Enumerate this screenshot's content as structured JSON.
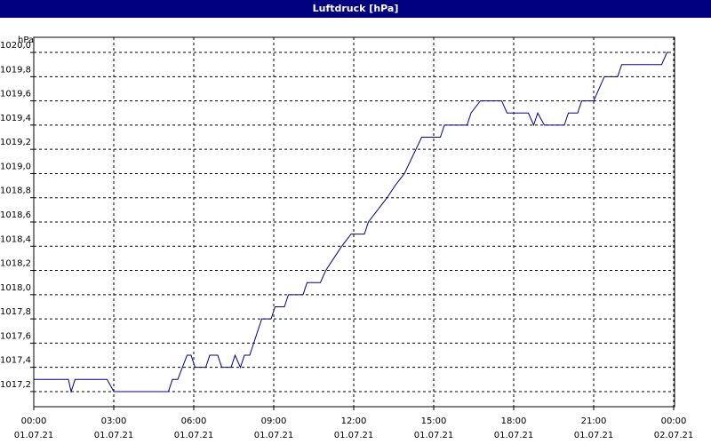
{
  "chart_data": {
    "type": "line",
    "title": "Luftdruck [hPa]",
    "y_label": "hPa",
    "xlim": [
      0,
      24
    ],
    "ylim": [
      1017.075,
      1020.125
    ],
    "xticks": [
      {
        "value": 0,
        "label": "00:00",
        "date": "01.07.21"
      },
      {
        "value": 3,
        "label": "03:00",
        "date": "01.07.21"
      },
      {
        "value": 6,
        "label": "06:00",
        "date": "01.07.21"
      },
      {
        "value": 9,
        "label": "09:00",
        "date": "01.07.21"
      },
      {
        "value": 12,
        "label": "12:00",
        "date": "01.07.21"
      },
      {
        "value": 15,
        "label": "15:00",
        "date": "01.07.21"
      },
      {
        "value": 18,
        "label": "18:00",
        "date": "01.07.21"
      },
      {
        "value": 21,
        "label": "21:00",
        "date": "01.07.21"
      },
      {
        "value": 24,
        "label": "00:00",
        "date": "02.07.21"
      }
    ],
    "yticks": [
      {
        "value": 1017.2,
        "label": "1017,2"
      },
      {
        "value": 1017.4,
        "label": "1017,4"
      },
      {
        "value": 1017.6,
        "label": "1017,6"
      },
      {
        "value": 1017.8,
        "label": "1017,8"
      },
      {
        "value": 1018.0,
        "label": "1018,0"
      },
      {
        "value": 1018.2,
        "label": "1018,2"
      },
      {
        "value": 1018.4,
        "label": "1018,4"
      },
      {
        "value": 1018.6,
        "label": "1018,6"
      },
      {
        "value": 1018.8,
        "label": "1018,8"
      },
      {
        "value": 1019.0,
        "label": "1019,0"
      },
      {
        "value": 1019.2,
        "label": "1019,2"
      },
      {
        "value": 1019.4,
        "label": "1019,4"
      },
      {
        "value": 1019.6,
        "label": "1019,6"
      },
      {
        "value": 1019.8,
        "label": "1019,8"
      },
      {
        "value": 1020.0,
        "label": "1020,0"
      }
    ],
    "grid": true,
    "color": "#00008b",
    "x": [
      0,
      1.3,
      1.4,
      1.55,
      2.75,
      3.0,
      5.05,
      5.2,
      5.4,
      5.75,
      5.9,
      6.05,
      6.45,
      6.6,
      6.9,
      7.05,
      7.4,
      7.55,
      7.75,
      7.9,
      8.1,
      8.55,
      8.9,
      9.05,
      9.4,
      9.55,
      10.1,
      10.25,
      10.75,
      10.95,
      11.25,
      11.55,
      11.9,
      12.4,
      12.55,
      12.9,
      13.25,
      13.55,
      13.9,
      14.55,
      15.25,
      15.4,
      16.25,
      16.4,
      16.75,
      17.55,
      17.75,
      18.55,
      18.75,
      18.9,
      19.15,
      19.9,
      20.05,
      20.4,
      20.55,
      21.0,
      21.4,
      21.9,
      22.05,
      23.55,
      23.75,
      23.9
    ],
    "values": [
      1017.3,
      1017.3,
      1017.2,
      1017.3,
      1017.3,
      1017.2,
      1017.2,
      1017.3,
      1017.3,
      1017.5,
      1017.5,
      1017.4,
      1017.4,
      1017.5,
      1017.5,
      1017.4,
      1017.4,
      1017.5,
      1017.4,
      1017.5,
      1017.5,
      1017.8,
      1017.8,
      1017.9,
      1017.9,
      1018.0,
      1018.0,
      1018.1,
      1018.1,
      1018.2,
      1018.3,
      1018.4,
      1018.5,
      1018.5,
      1018.6,
      1018.7,
      1018.8,
      1018.9,
      1019.0,
      1019.3,
      1019.3,
      1019.4,
      1019.4,
      1019.5,
      1019.6,
      1019.6,
      1019.5,
      1019.5,
      1019.4,
      1019.5,
      1019.4,
      1019.4,
      1019.5,
      1019.5,
      1019.6,
      1019.6,
      1019.8,
      1019.8,
      1019.9,
      1019.9,
      1020.0,
      1020.0
    ]
  }
}
